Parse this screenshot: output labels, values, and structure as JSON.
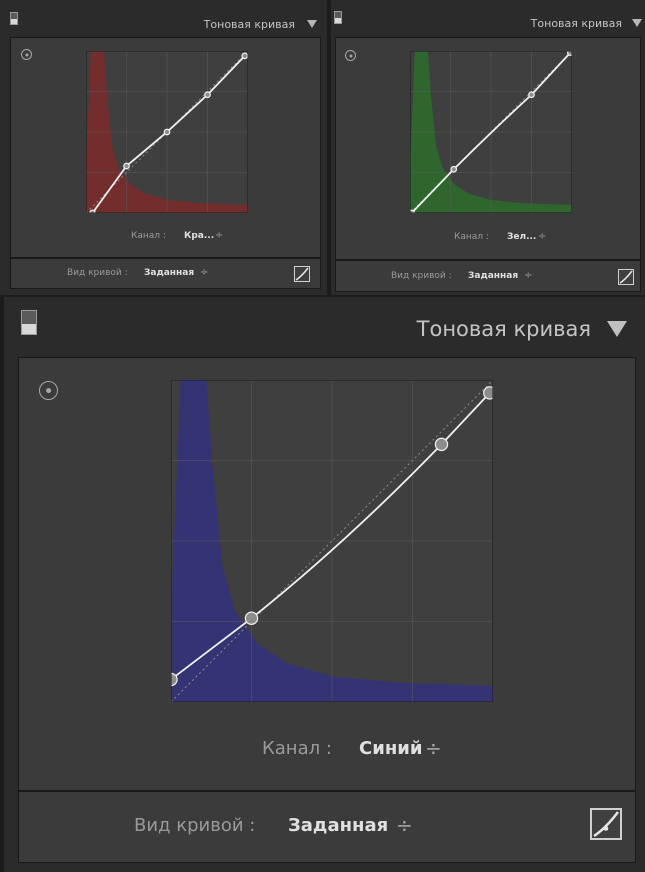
{
  "panels": [
    {
      "title": "Тоновая кривая",
      "channel_label": "Канал :",
      "channel_value": "Кра...",
      "curve_type_label": "Вид кривой :",
      "curve_type_value": "Заданная",
      "spinner": "÷",
      "histogram_color": "#7a2b2b"
    },
    {
      "title": "Тоновая кривая",
      "channel_label": "Канал :",
      "channel_value": "Зел...",
      "curve_type_label": "Вид кривой :",
      "curve_type_value": "Заданная",
      "spinner": "÷",
      "histogram_color": "#2c6a2c"
    },
    {
      "title": "Тоновая кривая",
      "channel_label": "Канал :",
      "channel_value": "Синий",
      "curve_type_label": "Вид кривой :",
      "curve_type_value": "Заданная",
      "spinner": "÷",
      "histogram_color": "#33337a"
    }
  ]
}
